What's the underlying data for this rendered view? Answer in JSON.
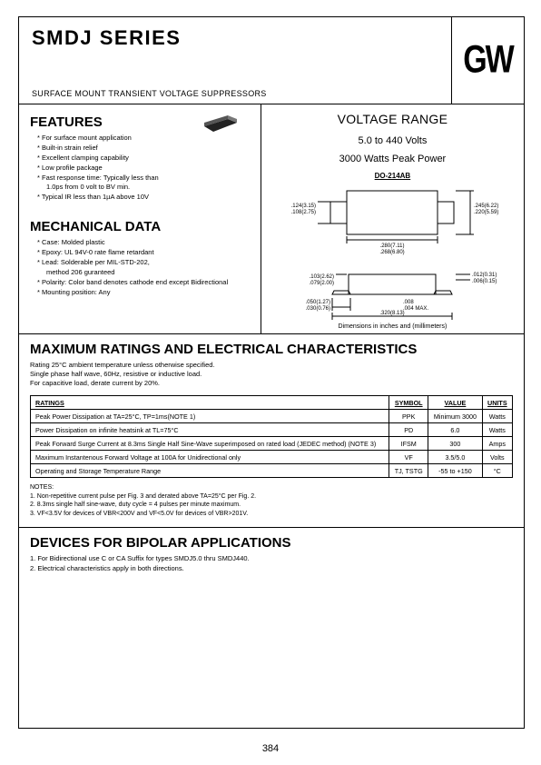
{
  "page_number": "384",
  "header": {
    "title": "SMDJ SERIES",
    "subtitle": "SURFACE MOUNT TRANSIENT VOLTAGE SUPPRESSORS",
    "logo": "GW"
  },
  "features": {
    "heading": "FEATURES",
    "items": [
      "For surface mount application",
      "Built-in strain relief",
      "Excellent clamping capability",
      "Low profile package",
      "Fast response time: Typically less than",
      "1.0ps from 0 volt to BV min.",
      "Typical IR less than 1µA above 10V"
    ],
    "cont_flags": [
      false,
      false,
      false,
      false,
      false,
      true,
      false
    ]
  },
  "mechanical": {
    "heading": "MECHANICAL DATA",
    "items": [
      "Case: Molded plastic",
      "Epoxy: UL 94V-0 rate flame retardant",
      "Lead: Solderable per MIL-STD-202,",
      "method 206 guranteed",
      "Polarity: Color band denotes cathode end except Bidirectional",
      "Mounting position: Any"
    ],
    "cont_flags": [
      false,
      false,
      false,
      true,
      false,
      false
    ]
  },
  "voltage_range": {
    "heading": "VOLTAGE RANGE",
    "range": "5.0 to 440 Volts",
    "power": "3000 Watts Peak Power",
    "package": "DO-214AB",
    "dim_note": "Dimensions in inches and (millimeters)",
    "drawing": {
      "top_w": ".280(7.11)",
      "top_w2": ".268(6.80)",
      "lead_tl": ".124(3.15)",
      "lead_tl2": ".108(2.75)",
      "lead_tr": ".245(6.22)",
      "lead_tr2": ".220(5.59)",
      "h_r": ".012(0.31)",
      "h_r2": ".006(0.15)",
      "body_h": ".103(2.62)",
      "body_h2": ".079(2.00)",
      "foot_l": ".050(1.27)",
      "foot_l2": ".030(0.76)",
      "overall": ".320(8.13)",
      "overall2": ".305(7.75)",
      "mid": ".008",
      "mid2": ".004 MAX."
    }
  },
  "max_ratings": {
    "heading": "MAXIMUM RATINGS AND ELECTRICAL CHARACTERISTICS",
    "conditions": [
      "Rating 25°C ambient temperature unless otherwise specified.",
      "Single phase half wave, 60Hz, resistive or inductive load.",
      "For capacitive load, derate current by 20%."
    ],
    "columns": [
      "RATINGS",
      "SYMBOL",
      "VALUE",
      "UNITS"
    ],
    "rows": [
      {
        "r": "Peak Power Dissipation at TA=25°C, TP=1ms(NOTE 1)",
        "s": "PPK",
        "v": "Minimum 3000",
        "u": "Watts"
      },
      {
        "r": "Power Dissipation on infinite heatsink at TL=75°C",
        "s": "PD",
        "v": "6.0",
        "u": "Watts"
      },
      {
        "r": "Peak Forward Surge Current at 8.3ms Single Half Sine-Wave superimposed on rated load (JEDEC method) (NOTE 3)",
        "s": "IFSM",
        "v": "300",
        "u": "Amps"
      },
      {
        "r": "Maximum Instantenous Forward Voltage at 100A for Unidirectional only",
        "s": "VF",
        "v": "3.5/5.0",
        "u": "Volts"
      },
      {
        "r": "Operating and Storage Temperature Range",
        "s": "TJ, TSTG",
        "v": "-55 to +150",
        "u": "°C"
      }
    ],
    "notes_label": "NOTES:",
    "notes": [
      "1. Non-repetitive current pulse per Fig. 3 and derated above TA=25°C per Fig. 2.",
      "2. 8.3ms single half sine-wave, duty cycle = 4 pulses per minute maximum.",
      "3. VF<3.5V for devices of VBR<200V and VF<5.0V for devices of VBR>201V."
    ]
  },
  "bipolar": {
    "heading": "DEVICES FOR BIPOLAR APPLICATIONS",
    "items": [
      "1. For Bidirectional use C or CA Suffix for types SMDJ5.0 thru SMDJ440.",
      "2. Electrical characteristics apply in both directions."
    ]
  },
  "colors": {
    "ink": "#000000",
    "bg": "#ffffff"
  }
}
